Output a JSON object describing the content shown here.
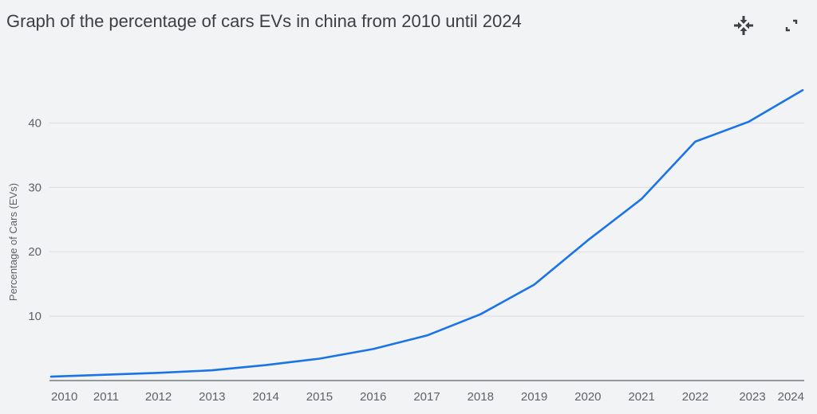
{
  "header": {
    "title": "Graph of the percentage of cars EVs in china from 2010 until 2024",
    "collapse_icon": "collapse-arrows-icon",
    "fullscreen_icon": "fullscreen-icon"
  },
  "colors": {
    "line": "#1a73e8",
    "grid": "#dadce0",
    "axis": "#5f6368",
    "text": "#3c4043"
  },
  "chart_data": {
    "type": "line",
    "title": "Graph of the percentage of cars EVs in china from 2010 until 2024",
    "xlabel": "",
    "ylabel": "Percentage of Cars (EVs)",
    "x": [
      2010,
      2011,
      2012,
      2013,
      2014,
      2015,
      2016,
      2017,
      2018,
      2019,
      2020,
      2021,
      2022,
      2023,
      2024
    ],
    "series": [
      {
        "values": [
          0.6,
          0.9,
          1.2,
          1.6,
          2.4,
          3.4,
          4.9,
          7.0,
          10.3,
          14.9,
          21.8,
          28.2,
          37.1,
          40.2,
          45.1
        ]
      }
    ],
    "xlim": [
      2010,
      2024
    ],
    "ylim": [
      0,
      45
    ],
    "yticks": [
      10,
      20,
      30,
      40
    ],
    "grid": true,
    "legend": "none"
  }
}
